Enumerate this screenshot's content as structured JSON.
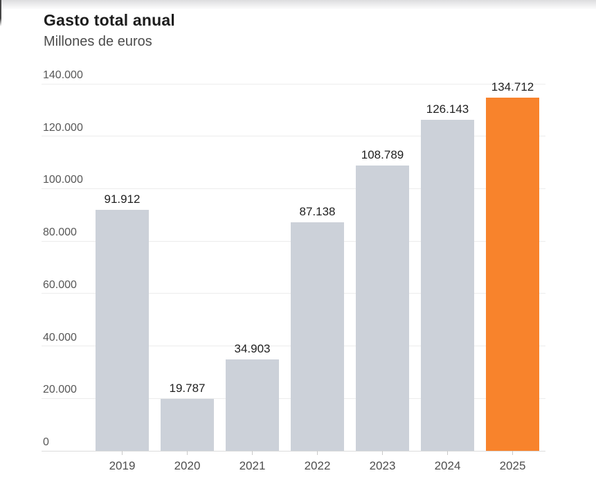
{
  "header": {
    "title": "Gasto total anual",
    "subtitle": "Millones de euros"
  },
  "chart_data": {
    "type": "bar",
    "title": "Gasto total anual",
    "subtitle": "Millones de euros",
    "ylabel": "Millones de euros",
    "categories": [
      "2019",
      "2020",
      "2021",
      "2022",
      "2023",
      "2024",
      "2025"
    ],
    "values": [
      91912,
      19787,
      34903,
      87138,
      108789,
      126143,
      134712
    ],
    "value_labels": [
      "91.912",
      "19.787",
      "34.903",
      "87.138",
      "108.789",
      "126.143",
      "134.712"
    ],
    "ylim": [
      0,
      140000
    ],
    "y_tick_step": 20000,
    "y_tick_labels": [
      "0",
      "20.000",
      "40.000",
      "60.000",
      "80.000",
      "100.000",
      "120.000",
      "140.000"
    ],
    "grid": true,
    "legend": false,
    "legend_position": "none",
    "bar_color": "#ccd1d9",
    "highlight_index": 6,
    "highlight_color": "#f8832c"
  },
  "colors": {
    "background": "#ffffff",
    "title_text": "#1d1d1d",
    "subtitle_text": "#4c4c4c",
    "axis_label_text": "#575757",
    "x_label_text": "#4e4e4e",
    "value_label_text": "#1f1f1f",
    "gridline": "#ececec",
    "axis_line": "#dcdcdc",
    "tick": "#c9c9c9"
  }
}
